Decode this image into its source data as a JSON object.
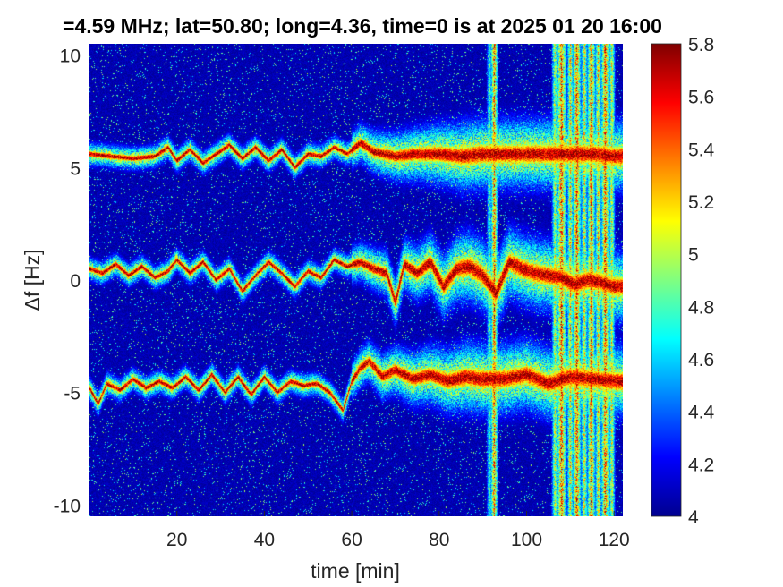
{
  "chart_data": {
    "type": "heatmap",
    "title": "=4.59 MHz;  lat=50.80; long=4.36, time=0 is at 2025 01 20 16:00",
    "xlabel": "time [min]",
    "ylabel": "Δf [Hz]",
    "xlim": [
      0,
      122
    ],
    "ylim": [
      -10.5,
      10.5
    ],
    "xticks": [
      20,
      40,
      60,
      80,
      100,
      120
    ],
    "yticks": [
      10,
      5,
      0,
      -5,
      -10
    ],
    "colorbar": {
      "range": [
        4,
        5.8
      ],
      "ticks": [
        "5.8",
        "5.6",
        "5.4",
        "5.2",
        "5",
        "4.8",
        "4.6",
        "4.4",
        "4.2",
        "4"
      ],
      "colormap": "jet"
    },
    "background_color": "#00008f",
    "traces": [
      {
        "name_hint": "upper",
        "points": [
          [
            0,
            5.6
          ],
          [
            5,
            5.5
          ],
          [
            10,
            5.4
          ],
          [
            15,
            5.5
          ],
          [
            18,
            5.9
          ],
          [
            20,
            5.3
          ],
          [
            23,
            5.8
          ],
          [
            26,
            5.2
          ],
          [
            29,
            5.6
          ],
          [
            32,
            6.0
          ],
          [
            35,
            5.4
          ],
          [
            38,
            5.9
          ],
          [
            41,
            5.3
          ],
          [
            44,
            5.8
          ],
          [
            47,
            5.0
          ],
          [
            50,
            5.6
          ],
          [
            53,
            5.5
          ],
          [
            56,
            5.9
          ],
          [
            59,
            5.6
          ],
          [
            62,
            6.1
          ],
          [
            65,
            5.7
          ],
          [
            70,
            5.5
          ],
          [
            75,
            5.6
          ],
          [
            80,
            5.6
          ],
          [
            85,
            5.5
          ],
          [
            90,
            5.6
          ],
          [
            95,
            5.6
          ],
          [
            100,
            5.6
          ],
          [
            105,
            5.6
          ],
          [
            110,
            5.6
          ],
          [
            115,
            5.6
          ],
          [
            120,
            5.5
          ]
        ]
      },
      {
        "name_hint": "middle",
        "points": [
          [
            0,
            0.5
          ],
          [
            3,
            0.3
          ],
          [
            6,
            0.7
          ],
          [
            9,
            0.2
          ],
          [
            12,
            0.6
          ],
          [
            15,
            0.1
          ],
          [
            18,
            0.4
          ],
          [
            20,
            0.9
          ],
          [
            23,
            0.3
          ],
          [
            26,
            0.8
          ],
          [
            29,
            0.0
          ],
          [
            32,
            0.5
          ],
          [
            35,
            -0.5
          ],
          [
            38,
            0.2
          ],
          [
            41,
            0.8
          ],
          [
            44,
            0.3
          ],
          [
            47,
            -0.3
          ],
          [
            50,
            0.4
          ],
          [
            53,
            0.1
          ],
          [
            56,
            0.9
          ],
          [
            59,
            0.6
          ],
          [
            62,
            0.8
          ],
          [
            65,
            0.5
          ],
          [
            68,
            0.3
          ],
          [
            70,
            -1.0
          ],
          [
            72,
            0.7
          ],
          [
            75,
            0.3
          ],
          [
            78,
            0.8
          ],
          [
            81,
            -0.3
          ],
          [
            84,
            0.5
          ],
          [
            87,
            0.6
          ],
          [
            90,
            0.2
          ],
          [
            93,
            -0.6
          ],
          [
            96,
            0.8
          ],
          [
            99,
            0.5
          ],
          [
            102,
            0.3
          ],
          [
            105,
            0.2
          ],
          [
            108,
            0.1
          ],
          [
            111,
            -0.2
          ],
          [
            114,
            0.0
          ],
          [
            117,
            -0.1
          ],
          [
            120,
            -0.3
          ]
        ]
      },
      {
        "name_hint": "lower",
        "points": [
          [
            0,
            -4.8
          ],
          [
            2,
            -5.5
          ],
          [
            4,
            -4.6
          ],
          [
            7,
            -4.9
          ],
          [
            10,
            -4.4
          ],
          [
            13,
            -4.8
          ],
          [
            16,
            -4.5
          ],
          [
            19,
            -4.8
          ],
          [
            22,
            -4.3
          ],
          [
            25,
            -4.9
          ],
          [
            28,
            -4.2
          ],
          [
            31,
            -5.0
          ],
          [
            34,
            -4.3
          ],
          [
            37,
            -5.1
          ],
          [
            40,
            -4.3
          ],
          [
            43,
            -5.0
          ],
          [
            46,
            -4.5
          ],
          [
            49,
            -4.7
          ],
          [
            52,
            -4.6
          ],
          [
            55,
            -5.0
          ],
          [
            58,
            -5.8
          ],
          [
            60,
            -4.5
          ],
          [
            62,
            -3.9
          ],
          [
            64,
            -3.6
          ],
          [
            67,
            -4.3
          ],
          [
            70,
            -4.0
          ],
          [
            74,
            -4.4
          ],
          [
            78,
            -4.2
          ],
          [
            82,
            -4.5
          ],
          [
            86,
            -4.3
          ],
          [
            90,
            -4.4
          ],
          [
            95,
            -4.4
          ],
          [
            100,
            -4.2
          ],
          [
            105,
            -4.6
          ],
          [
            110,
            -4.3
          ],
          [
            115,
            -4.4
          ],
          [
            120,
            -4.5
          ]
        ]
      }
    ],
    "vertical_streaks": [
      {
        "x": 91.5,
        "width": 0.8,
        "intensity": 0.6
      },
      {
        "x": 92.6,
        "width": 1.1,
        "intensity": 1.0
      },
      {
        "x": 106.5,
        "width": 1.0,
        "intensity": 0.75
      },
      {
        "x": 108,
        "width": 1.6,
        "intensity": 1.0
      },
      {
        "x": 110,
        "width": 1.0,
        "intensity": 0.85
      },
      {
        "x": 111.5,
        "width": 1.4,
        "intensity": 1.0
      },
      {
        "x": 113.2,
        "width": 1.0,
        "intensity": 0.85
      },
      {
        "x": 114.8,
        "width": 1.3,
        "intensity": 1.0
      },
      {
        "x": 116.4,
        "width": 1.0,
        "intensity": 0.85
      },
      {
        "x": 118,
        "width": 1.4,
        "intensity": 1.0
      },
      {
        "x": 119.5,
        "width": 1.0,
        "intensity": 0.8
      }
    ]
  }
}
